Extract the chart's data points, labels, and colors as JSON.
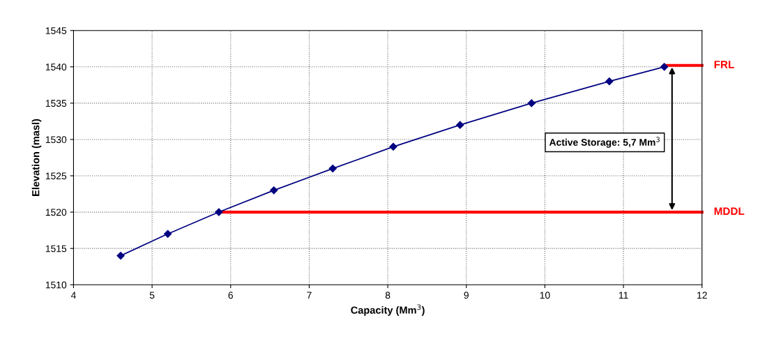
{
  "chart_data": {
    "type": "line",
    "xlabel": "Capacity (Mm$^{3}$)",
    "ylabel": "Elevation (masl)",
    "xlim": [
      4,
      12
    ],
    "xticks": [
      4,
      5,
      6,
      7,
      8,
      9,
      10,
      11,
      12
    ],
    "ylim": [
      1510,
      1545
    ],
    "yticks": [
      1510,
      1515,
      1520,
      1525,
      1530,
      1535,
      1540,
      1545
    ],
    "grid": true,
    "series": [
      {
        "color": "#000080",
        "marker": "diamond",
        "x": [
          4.6,
          5.2,
          5.85,
          6.55,
          7.3,
          8.07,
          8.92,
          9.83,
          10.82,
          11.52
        ],
        "values": [
          1514,
          1517,
          1520,
          1523,
          1526,
          1529,
          1532,
          1535,
          1538,
          1540
        ]
      },
      {
        "name": "FRL",
        "color": "#ff0000",
        "marker": "none",
        "x": [
          11.52,
          12
        ],
        "values": [
          1540.2,
          1540.2
        ]
      },
      {
        "name": "MDDL",
        "color": "#ff0000",
        "marker": "none",
        "x": [
          5.85,
          12
        ],
        "values": [
          1520,
          1520
        ]
      }
    ],
    "annotations": [
      "Active Storage: 5,7 Mm$^{3}$"
    ]
  }
}
